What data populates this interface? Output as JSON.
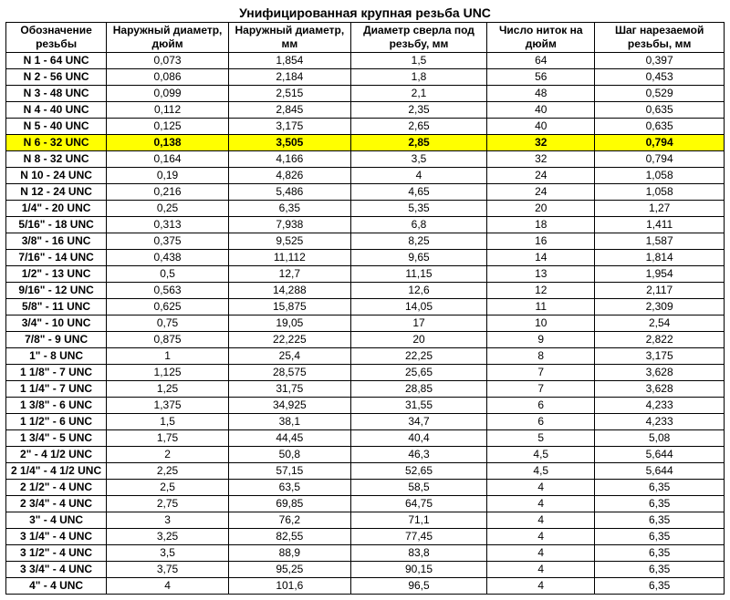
{
  "title": "Унифицированная крупная резьба UNC",
  "columns": [
    "Обозначение резьбы",
    "Наружный диаметр, дюйм",
    "Наружный диаметр, мм",
    "Диаметр сверла под резьбу, мм",
    "Число ниток на дюйм",
    "Шаг нарезаемой резьбы, мм"
  ],
  "highlight_index": 5,
  "rows": [
    [
      "N 1 - 64 UNC",
      "0,073",
      "1,854",
      "1,5",
      "64",
      "0,397"
    ],
    [
      "N 2 - 56 UNC",
      "0,086",
      "2,184",
      "1,8",
      "56",
      "0,453"
    ],
    [
      "N 3 - 48 UNC",
      "0,099",
      "2,515",
      "2,1",
      "48",
      "0,529"
    ],
    [
      "N 4 - 40 UNC",
      "0,112",
      "2,845",
      "2,35",
      "40",
      "0,635"
    ],
    [
      "N 5 - 40 UNC",
      "0,125",
      "3,175",
      "2,65",
      "40",
      "0,635"
    ],
    [
      "N 6 - 32 UNC",
      "0,138",
      "3,505",
      "2,85",
      "32",
      "0,794"
    ],
    [
      "N 8 - 32 UNC",
      "0,164",
      "4,166",
      "3,5",
      "32",
      "0,794"
    ],
    [
      "N 10 - 24 UNC",
      "0,19",
      "4,826",
      "4",
      "24",
      "1,058"
    ],
    [
      "N 12 - 24 UNC",
      "0,216",
      "5,486",
      "4,65",
      "24",
      "1,058"
    ],
    [
      "1/4\" - 20 UNC",
      "0,25",
      "6,35",
      "5,35",
      "20",
      "1,27"
    ],
    [
      "5/16\" - 18 UNC",
      "0,313",
      "7,938",
      "6,8",
      "18",
      "1,411"
    ],
    [
      "3/8\" - 16 UNC",
      "0,375",
      "9,525",
      "8,25",
      "16",
      "1,587"
    ],
    [
      "7/16\" - 14 UNC",
      "0,438",
      "11,112",
      "9,65",
      "14",
      "1,814"
    ],
    [
      "1/2\" - 13 UNC",
      "0,5",
      "12,7",
      "11,15",
      "13",
      "1,954"
    ],
    [
      "9/16\" - 12 UNC",
      "0,563",
      "14,288",
      "12,6",
      "12",
      "2,117"
    ],
    [
      "5/8\" - 11 UNC",
      "0,625",
      "15,875",
      "14,05",
      "11",
      "2,309"
    ],
    [
      "3/4\" - 10 UNC",
      "0,75",
      "19,05",
      "17",
      "10",
      "2,54"
    ],
    [
      "7/8\" - 9 UNC",
      "0,875",
      "22,225",
      "20",
      "9",
      "2,822"
    ],
    [
      "1\" - 8 UNC",
      "1",
      "25,4",
      "22,25",
      "8",
      "3,175"
    ],
    [
      "1 1/8\" - 7 UNC",
      "1,125",
      "28,575",
      "25,65",
      "7",
      "3,628"
    ],
    [
      "1 1/4\" - 7 UNC",
      "1,25",
      "31,75",
      "28,85",
      "7",
      "3,628"
    ],
    [
      "1 3/8\" - 6 UNC",
      "1,375",
      "34,925",
      "31,55",
      "6",
      "4,233"
    ],
    [
      "1 1/2\" - 6 UNC",
      "1,5",
      "38,1",
      "34,7",
      "6",
      "4,233"
    ],
    [
      "1 3/4\" - 5 UNC",
      "1,75",
      "44,45",
      "40,4",
      "5",
      "5,08"
    ],
    [
      "2\" - 4 1/2 UNC",
      "2",
      "50,8",
      "46,3",
      "4,5",
      "5,644"
    ],
    [
      "2 1/4\" - 4 1/2 UNC",
      "2,25",
      "57,15",
      "52,65",
      "4,5",
      "5,644"
    ],
    [
      "2 1/2\" - 4 UNC",
      "2,5",
      "63,5",
      "58,5",
      "4",
      "6,35"
    ],
    [
      "2 3/4\" - 4 UNC",
      "2,75",
      "69,85",
      "64,75",
      "4",
      "6,35"
    ],
    [
      "3\" - 4 UNC",
      "3",
      "76,2",
      "71,1",
      "4",
      "6,35"
    ],
    [
      "3 1/4\" - 4 UNC",
      "3,25",
      "82,55",
      "77,45",
      "4",
      "6,35"
    ],
    [
      "3 1/2\" - 4 UNC",
      "3,5",
      "88,9",
      "83,8",
      "4",
      "6,35"
    ],
    [
      "3 3/4\" - 4 UNC",
      "3,75",
      "95,25",
      "90,15",
      "4",
      "6,35"
    ],
    [
      "4\" - 4 UNC",
      "4",
      "101,6",
      "96,5",
      "4",
      "6,35"
    ]
  ]
}
